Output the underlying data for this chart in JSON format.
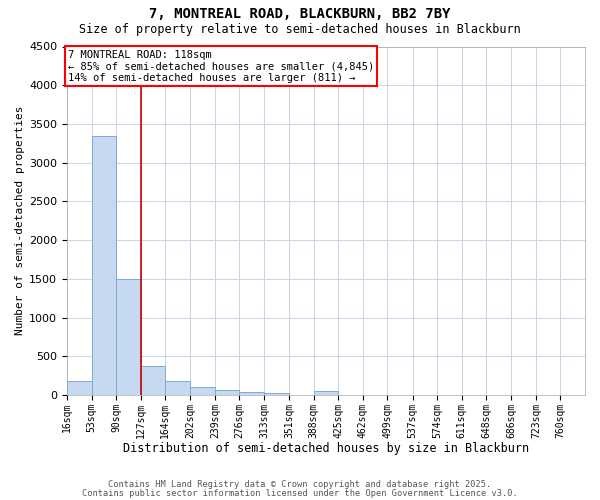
{
  "title1": "7, MONTREAL ROAD, BLACKBURN, BB2 7BY",
  "title2": "Size of property relative to semi-detached houses in Blackburn",
  "xlabel": "Distribution of semi-detached houses by size in Blackburn",
  "ylabel": "Number of semi-detached properties",
  "bins": [
    16,
    53,
    90,
    127,
    164,
    202,
    239,
    276,
    313,
    351,
    388,
    425,
    462,
    499,
    537,
    574,
    611,
    648,
    686,
    723,
    760
  ],
  "bin_labels": [
    "16sqm",
    "53sqm",
    "90sqm",
    "127sqm",
    "164sqm",
    "202sqm",
    "239sqm",
    "276sqm",
    "313sqm",
    "351sqm",
    "388sqm",
    "425sqm",
    "462sqm",
    "499sqm",
    "537sqm",
    "574sqm",
    "611sqm",
    "648sqm",
    "686sqm",
    "723sqm",
    "760sqm"
  ],
  "heights": [
    175,
    3350,
    1500,
    375,
    175,
    100,
    60,
    35,
    30,
    5,
    50,
    5,
    5,
    2,
    2,
    2,
    2,
    2,
    2,
    2,
    2
  ],
  "bar_color": "#c6d9f0",
  "bar_edge_color": "#7aadd4",
  "property_line_x": 127,
  "property_line_color": "#cc0000",
  "ylim": [
    0,
    4500
  ],
  "annotation_line1": "7 MONTREAL ROAD: 118sqm",
  "annotation_line2": "← 85% of semi-detached houses are smaller (4,845)",
  "annotation_line3": "14% of semi-detached houses are larger (811) →",
  "footnote1": "Contains HM Land Registry data © Crown copyright and database right 2025.",
  "footnote2": "Contains public sector information licensed under the Open Government Licence v3.0.",
  "background_color": "#ffffff",
  "grid_color": "#c8d4e8"
}
